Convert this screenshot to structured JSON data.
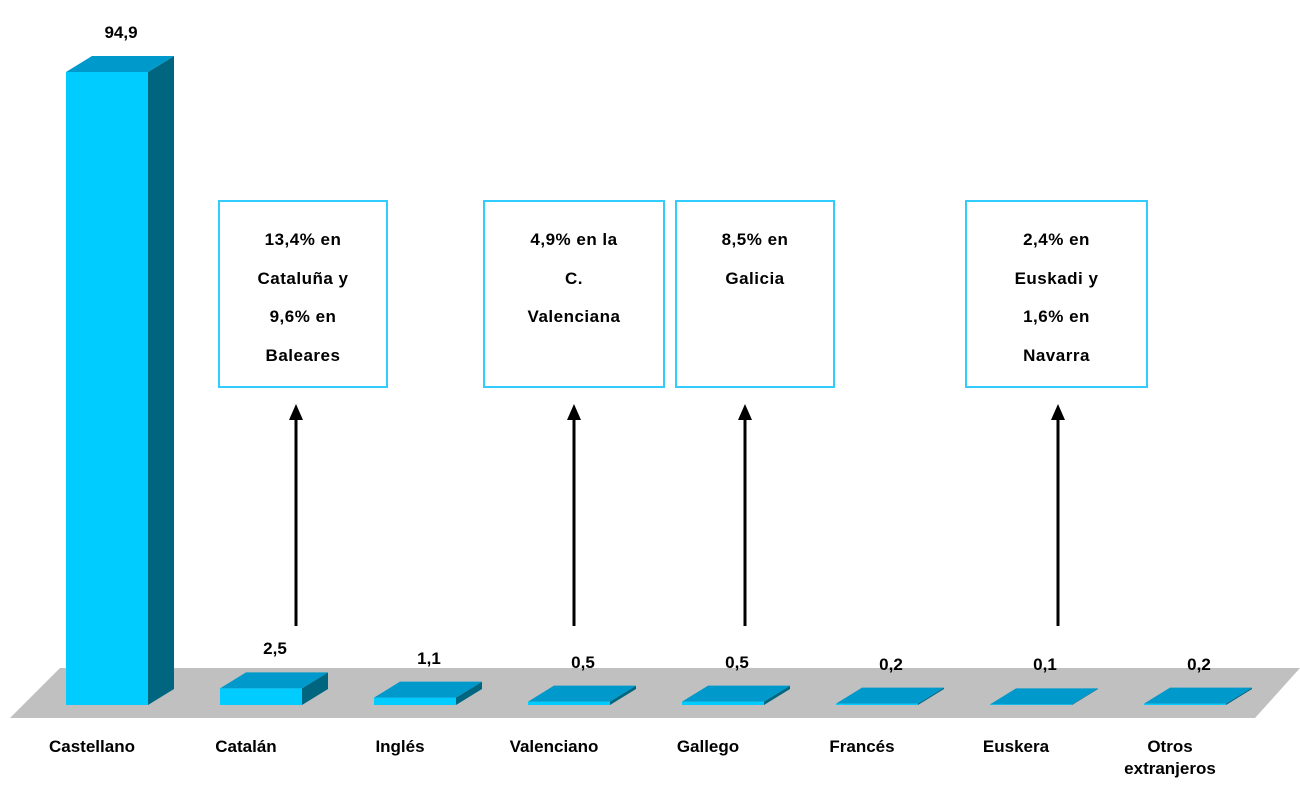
{
  "chart_data": {
    "type": "bar3d",
    "categories": [
      "Castellano",
      "Catalán",
      "Inglés",
      "Valenciano",
      "Gallego",
      "Francés",
      "Euskera",
      "Otros extranjeros"
    ],
    "values": [
      94.9,
      2.5,
      1.1,
      0.5,
      0.5,
      0.2,
      0.1,
      0.2
    ],
    "value_labels": [
      "94,9",
      "2,5",
      "1,1",
      "0,5",
      "0,5",
      "0,2",
      "0,1",
      "0,2"
    ],
    "colors": {
      "front": "#00ccff",
      "side": "#006680",
      "top": "#0099cc",
      "floor": "#c0c0c0"
    },
    "annotations": [
      {
        "lines": [
          "13,4% en",
          "Cataluña y",
          "9,6% en",
          "Baleares"
        ]
      },
      {
        "lines": [
          "4,9% en la",
          "C.",
          "Valenciana"
        ]
      },
      {
        "lines": [
          "8,5% en",
          "Galicia"
        ]
      },
      {
        "lines": [
          "2,4% en",
          "Euskadi y",
          "1,6% en",
          "Navarra"
        ]
      }
    ]
  }
}
